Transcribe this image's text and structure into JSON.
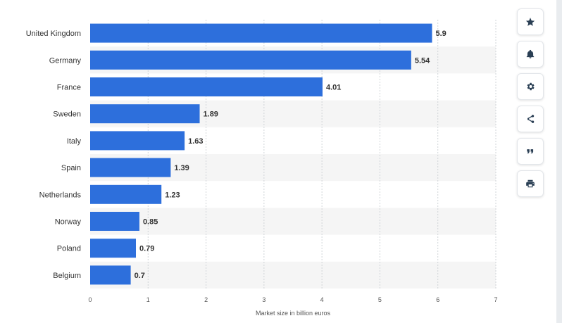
{
  "chart_data": {
    "type": "bar",
    "orientation": "horizontal",
    "categories": [
      "United Kingdom",
      "Germany",
      "France",
      "Sweden",
      "Italy",
      "Spain",
      "Netherlands",
      "Norway",
      "Poland",
      "Belgium"
    ],
    "values": [
      5.9,
      5.54,
      4.01,
      1.89,
      1.63,
      1.39,
      1.23,
      0.85,
      0.79,
      0.7
    ],
    "value_labels": [
      "5.9",
      "5.54",
      "4.01",
      "1.89",
      "1.63",
      "1.39",
      "1.23",
      "0.85",
      "0.79",
      "0.7"
    ],
    "xlabel": "Market size in billion euros",
    "ylabel": "",
    "xlim": [
      0,
      7
    ],
    "xticks": [
      "0",
      "1",
      "2",
      "3",
      "4",
      "5",
      "6",
      "7"
    ],
    "bar_color": "#2d6fdc",
    "stripe_color": "#f5f5f5",
    "grid": true
  },
  "toolbar": {
    "items": [
      {
        "name": "star-button",
        "icon": "star-icon"
      },
      {
        "name": "notification-button",
        "icon": "bell-icon"
      },
      {
        "name": "settings-button",
        "icon": "gear-icon"
      },
      {
        "name": "share-button",
        "icon": "share-icon"
      },
      {
        "name": "cite-button",
        "icon": "quote-icon"
      },
      {
        "name": "print-button",
        "icon": "print-icon"
      }
    ]
  }
}
